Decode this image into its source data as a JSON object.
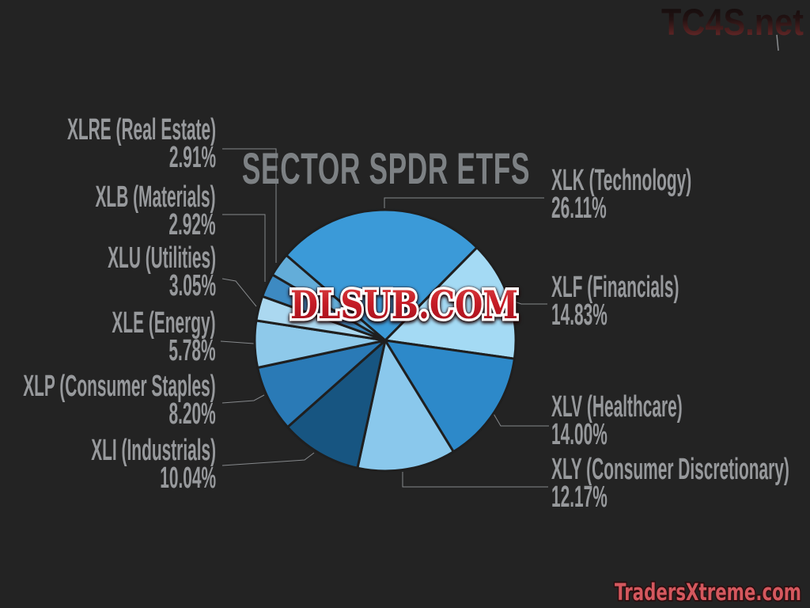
{
  "title": "SECTOR SPDR ETFS",
  "watermarks": {
    "top_right": "TC4S.net",
    "center": "DLSUB.COM",
    "bottom_right": "TradersXtreme.com"
  },
  "chart_data": {
    "type": "pie",
    "title": "SECTOR SPDR ETFS",
    "legend_position": "none",
    "start_angle_deg": -49.3,
    "direction": "clockwise",
    "label_format": "TICKER (Sector) / percent",
    "slices": [
      {
        "ticker": "XLK",
        "sector": "Technology",
        "label": "XLK (Technology)",
        "value": 26.11,
        "pct_label": "26.11%",
        "color": "#3b9ad8",
        "label_side": "right"
      },
      {
        "ticker": "XLF",
        "sector": "Financials",
        "label": "XLF (Financials)",
        "value": 14.83,
        "pct_label": "14.83%",
        "color": "#a4daf4",
        "label_side": "right"
      },
      {
        "ticker": "XLV",
        "sector": "Healthcare",
        "label": "XLV (Healthcare)",
        "value": 14.0,
        "pct_label": "14.00%",
        "color": "#2d89c9",
        "label_side": "right"
      },
      {
        "ticker": "XLY",
        "sector": "Consumer Discretionary",
        "label": "XLY (Consumer Discretionary)",
        "value": 12.17,
        "pct_label": "12.17%",
        "color": "#8ac8ec",
        "label_side": "right"
      },
      {
        "ticker": "XLI",
        "sector": "Industrials",
        "label": "XLI (Industrials)",
        "value": 10.04,
        "pct_label": "10.04%",
        "color": "#175581",
        "label_side": "left"
      },
      {
        "ticker": "XLP",
        "sector": "Consumer Staples",
        "label": "XLP (Consumer Staples)",
        "value": 8.2,
        "pct_label": "8.20%",
        "color": "#2a7ab6",
        "label_side": "left"
      },
      {
        "ticker": "XLE",
        "sector": "Energy",
        "label": "XLE (Energy)",
        "value": 5.78,
        "pct_label": "5.78%",
        "color": "#8ec9ea",
        "label_side": "left"
      },
      {
        "ticker": "XLU",
        "sector": "Utilities",
        "label": "XLU (Utilities)",
        "value": 3.05,
        "pct_label": "3.05%",
        "color": "#abd8f0",
        "label_side": "left"
      },
      {
        "ticker": "XLB",
        "sector": "Materials",
        "label": "XLB (Materials)",
        "value": 2.92,
        "pct_label": "2.92%",
        "color": "#3d8ac2",
        "label_side": "left"
      },
      {
        "ticker": "XLRE",
        "sector": "Real Estate",
        "label": "XLRE (Real Estate)",
        "value": 2.91,
        "pct_label": "2.91%",
        "color": "#63add9",
        "label_side": "left"
      }
    ]
  }
}
